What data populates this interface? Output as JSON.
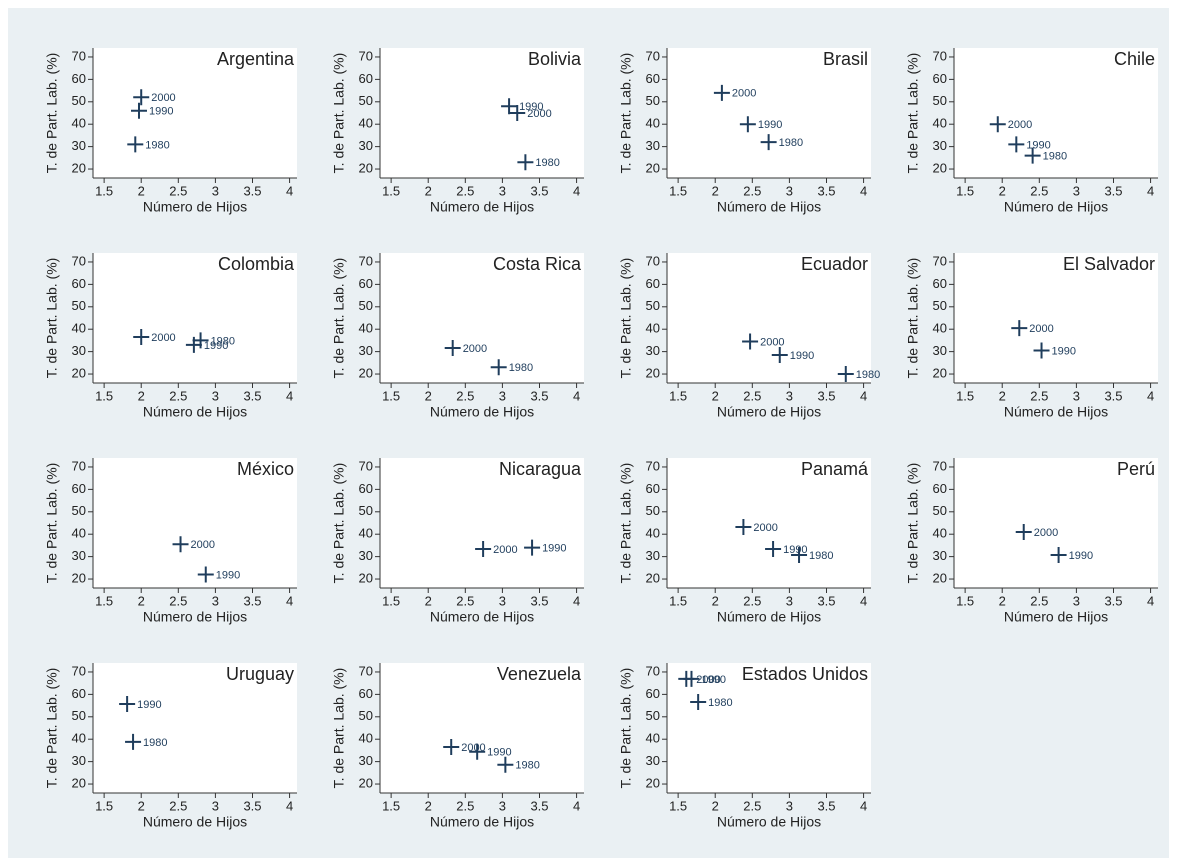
{
  "chart_data": [
    {
      "type": "scatter",
      "title": "Argentina",
      "x_label": "Número de Hijos",
      "y_label": "T. de Part. Lab. (%)",
      "x": [
        2.0,
        1.97,
        1.92
      ],
      "values": [
        52,
        46,
        31
      ],
      "labels": [
        "2000",
        "1990",
        "1980"
      ],
      "color": "#1f3d5c",
      "xlim": [
        1.35,
        4.1
      ],
      "ylim": [
        16,
        74
      ],
      "xticks": [
        1.5,
        2,
        2.5,
        3,
        3.5,
        4
      ],
      "yticks": [
        20,
        30,
        40,
        50,
        60,
        70
      ]
    },
    {
      "type": "scatter",
      "title": "Bolivia",
      "x_label": "Número de Hijos",
      "y_label": "T. de Part. Lab. (%)",
      "x": [
        3.09,
        3.2,
        3.31
      ],
      "values": [
        48,
        45,
        23
      ],
      "labels": [
        "1990",
        "2000",
        "1980"
      ],
      "color": "#1f3d5c",
      "xlim": [
        1.35,
        4.1
      ],
      "ylim": [
        16,
        74
      ],
      "xticks": [
        1.5,
        2,
        2.5,
        3,
        3.5,
        4
      ],
      "yticks": [
        20,
        30,
        40,
        50,
        60,
        70
      ]
    },
    {
      "type": "scatter",
      "title": "Brasil",
      "x_label": "Número de Hijos",
      "y_label": "T. de Part. Lab. (%)",
      "x": [
        2.09,
        2.44,
        2.72
      ],
      "values": [
        54,
        40,
        32
      ],
      "labels": [
        "2000",
        "1990",
        "1980"
      ],
      "color": "#1f3d5c",
      "xlim": [
        1.35,
        4.1
      ],
      "ylim": [
        16,
        74
      ],
      "xticks": [
        1.5,
        2,
        2.5,
        3,
        3.5,
        4
      ],
      "yticks": [
        20,
        30,
        40,
        50,
        60,
        70
      ]
    },
    {
      "type": "scatter",
      "title": "Chile",
      "x_label": "Número de Hijos",
      "y_label": "T. de Part. Lab. (%)",
      "x": [
        1.94,
        2.19,
        2.41
      ],
      "values": [
        40,
        31,
        26
      ],
      "labels": [
        "2000",
        "1990",
        "1980"
      ],
      "color": "#1f3d5c",
      "xlim": [
        1.35,
        4.1
      ],
      "ylim": [
        16,
        74
      ],
      "xticks": [
        1.5,
        2,
        2.5,
        3,
        3.5,
        4
      ],
      "yticks": [
        20,
        30,
        40,
        50,
        60,
        70
      ]
    },
    {
      "type": "scatter",
      "title": "Colombia",
      "x_label": "Número de Hijos",
      "y_label": "T. de Part. Lab. (%)",
      "x": [
        2.0,
        2.8,
        2.71
      ],
      "values": [
        36.5,
        35,
        33
      ],
      "labels": [
        "2000",
        "1980",
        "1990"
      ],
      "color": "#1f3d5c",
      "xlim": [
        1.35,
        4.1
      ],
      "ylim": [
        16,
        74
      ],
      "xticks": [
        1.5,
        2,
        2.5,
        3,
        3.5,
        4
      ],
      "yticks": [
        20,
        30,
        40,
        50,
        60,
        70
      ]
    },
    {
      "type": "scatter",
      "title": "Costa Rica",
      "x_label": "Número de Hijos",
      "y_label": "T. de Part. Lab. (%)",
      "x": [
        2.33,
        2.95
      ],
      "values": [
        31.6,
        23
      ],
      "labels": [
        "2000",
        "1980"
      ],
      "color": "#1f3d5c",
      "xlim": [
        1.35,
        4.1
      ],
      "ylim": [
        16,
        74
      ],
      "xticks": [
        1.5,
        2,
        2.5,
        3,
        3.5,
        4
      ],
      "yticks": [
        20,
        30,
        40,
        50,
        60,
        70
      ]
    },
    {
      "type": "scatter",
      "title": "Ecuador",
      "x_label": "Número de Hijos",
      "y_label": "T. de Part. Lab. (%)",
      "x": [
        2.47,
        2.87,
        3.76
      ],
      "values": [
        34.5,
        28.5,
        20
      ],
      "labels": [
        "2000",
        "1990",
        "1980"
      ],
      "color": "#1f3d5c",
      "xlim": [
        1.35,
        4.1
      ],
      "ylim": [
        16,
        74
      ],
      "xticks": [
        1.5,
        2,
        2.5,
        3,
        3.5,
        4
      ],
      "yticks": [
        20,
        30,
        40,
        50,
        60,
        70
      ]
    },
    {
      "type": "scatter",
      "title": "El Salvador",
      "x_label": "Número de Hijos",
      "y_label": "T. de Part. Lab. (%)",
      "x": [
        2.23,
        2.53
      ],
      "values": [
        40.5,
        30.5
      ],
      "labels": [
        "2000",
        "1990"
      ],
      "color": "#1f3d5c",
      "xlim": [
        1.35,
        4.1
      ],
      "ylim": [
        16,
        74
      ],
      "xticks": [
        1.5,
        2,
        2.5,
        3,
        3.5,
        4
      ],
      "yticks": [
        20,
        30,
        40,
        50,
        60,
        70
      ]
    },
    {
      "type": "scatter",
      "title": "México",
      "x_label": "Número de Hijos",
      "y_label": "T. de Part. Lab. (%)",
      "x": [
        2.53,
        2.87
      ],
      "values": [
        35.5,
        22
      ],
      "labels": [
        "2000",
        "1990"
      ],
      "color": "#1f3d5c",
      "xlim": [
        1.35,
        4.1
      ],
      "ylim": [
        16,
        74
      ],
      "xticks": [
        1.5,
        2,
        2.5,
        3,
        3.5,
        4
      ],
      "yticks": [
        20,
        30,
        40,
        50,
        60,
        70
      ]
    },
    {
      "type": "scatter",
      "title": "Nicaragua",
      "x_label": "Número de Hijos",
      "y_label": "T. de Part. Lab. (%)",
      "x": [
        2.74,
        3.4
      ],
      "values": [
        33.4,
        34
      ],
      "labels": [
        "2000",
        "1990"
      ],
      "color": "#1f3d5c",
      "xlim": [
        1.35,
        4.1
      ],
      "ylim": [
        16,
        74
      ],
      "xticks": [
        1.5,
        2,
        2.5,
        3,
        3.5,
        4
      ],
      "yticks": [
        20,
        30,
        40,
        50,
        60,
        70
      ]
    },
    {
      "type": "scatter",
      "title": "Panamá",
      "x_label": "Número de Hijos",
      "y_label": "T. de Part. Lab. (%)",
      "x": [
        2.38,
        2.78,
        3.13
      ],
      "values": [
        43.2,
        33.4,
        30.7
      ],
      "labels": [
        "2000",
        "1990",
        "1980"
      ],
      "color": "#1f3d5c",
      "xlim": [
        1.35,
        4.1
      ],
      "ylim": [
        16,
        74
      ],
      "xticks": [
        1.5,
        2,
        2.5,
        3,
        3.5,
        4
      ],
      "yticks": [
        20,
        30,
        40,
        50,
        60,
        70
      ]
    },
    {
      "type": "scatter",
      "title": "Perú",
      "x_label": "Número de Hijos",
      "y_label": "T. de Part. Lab. (%)",
      "x": [
        2.29,
        2.76
      ],
      "values": [
        41,
        30.7
      ],
      "labels": [
        "2000",
        "1990"
      ],
      "color": "#1f3d5c",
      "xlim": [
        1.35,
        4.1
      ],
      "ylim": [
        16,
        74
      ],
      "xticks": [
        1.5,
        2,
        2.5,
        3,
        3.5,
        4
      ],
      "yticks": [
        20,
        30,
        40,
        50,
        60,
        70
      ]
    },
    {
      "type": "scatter",
      "title": "Uruguay",
      "x_label": "Número de Hijos",
      "y_label": "T. de Part. Lab. (%)",
      "x": [
        1.81,
        1.89
      ],
      "values": [
        55.7,
        38.8
      ],
      "labels": [
        "1990",
        "1980"
      ],
      "color": "#1f3d5c",
      "xlim": [
        1.35,
        4.1
      ],
      "ylim": [
        16,
        74
      ],
      "xticks": [
        1.5,
        2,
        2.5,
        3,
        3.5,
        4
      ],
      "yticks": [
        20,
        30,
        40,
        50,
        60,
        70
      ]
    },
    {
      "type": "scatter",
      "title": "Venezuela",
      "x_label": "Número de Hijos",
      "y_label": "T. de Part. Lab. (%)",
      "x": [
        2.31,
        2.66,
        3.04
      ],
      "values": [
        36.5,
        34.4,
        28.6
      ],
      "labels": [
        "2000",
        "1990",
        "1980"
      ],
      "color": "#1f3d5c",
      "xlim": [
        1.35,
        4.1
      ],
      "ylim": [
        16,
        74
      ],
      "xticks": [
        1.5,
        2,
        2.5,
        3,
        3.5,
        4
      ],
      "yticks": [
        20,
        30,
        40,
        50,
        60,
        70
      ]
    },
    {
      "type": "scatter",
      "title": "Estados Unidos",
      "x_label": "Número de Hijos",
      "y_label": "T. de Part. Lab. (%)",
      "x": [
        1.61,
        1.68,
        1.77
      ],
      "values": [
        66.9,
        66.9,
        56.6
      ],
      "labels": [
        "2000",
        "1990",
        "1980"
      ],
      "color": "#1f3d5c",
      "xlim": [
        1.35,
        4.1
      ],
      "ylim": [
        16,
        74
      ],
      "xticks": [
        1.5,
        2,
        2.5,
        3,
        3.5,
        4
      ],
      "yticks": [
        20,
        30,
        40,
        50,
        60,
        70
      ]
    }
  ]
}
